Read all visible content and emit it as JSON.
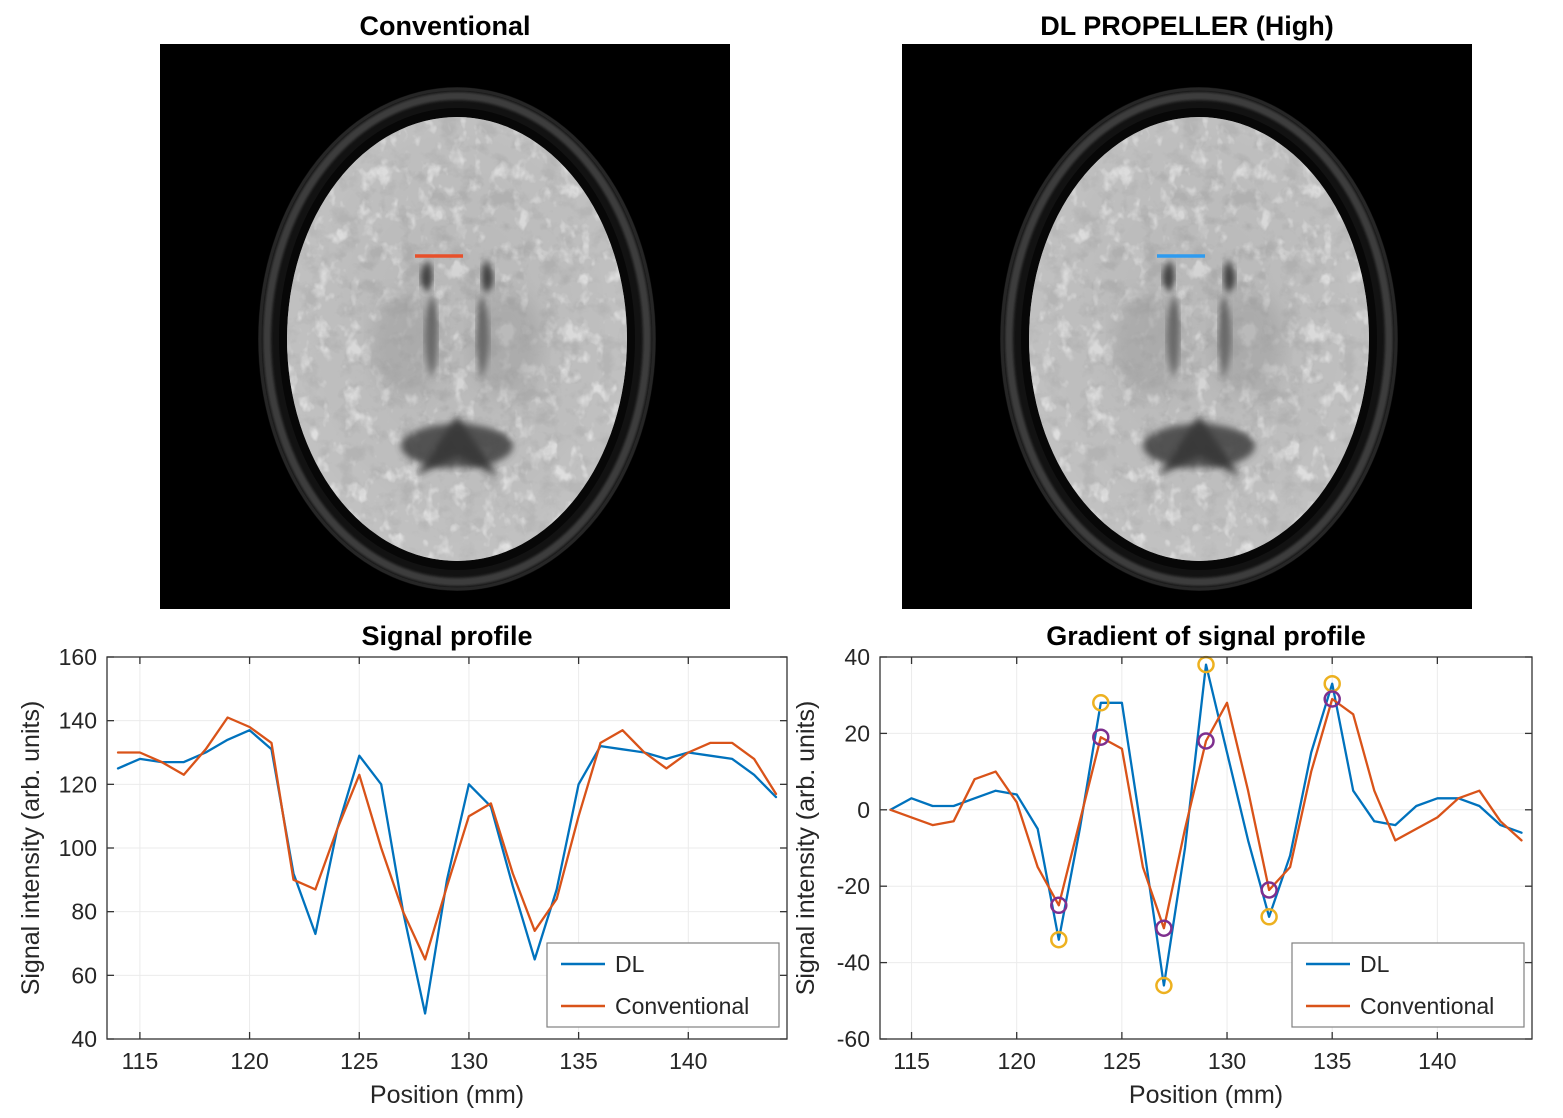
{
  "figure": {
    "background": "#ffffff"
  },
  "panels": {
    "conv": {
      "title": "Conventional",
      "marker_color": "#E8502A"
    },
    "dl": {
      "title": "DL PROPELLER (High)",
      "marker_color": "#2E9BF0"
    }
  },
  "colors": {
    "dl_line": "#0072BD",
    "conventional_line": "#D95319",
    "dl_extrema_marker": "#EDB120",
    "conventional_extrema_marker": "#7E2F8E"
  },
  "chart_data": [
    {
      "type": "line",
      "title": "Signal profile",
      "xlabel": "Position (mm)",
      "ylabel": "Signal intensity (arb. units)",
      "xlim": [
        113.5,
        144.5
      ],
      "ylim": [
        40,
        160
      ],
      "xticks": [
        115,
        120,
        125,
        130,
        135,
        140
      ],
      "yticks": [
        40,
        60,
        80,
        100,
        120,
        140,
        160
      ],
      "grid": true,
      "legend_position": "southeast",
      "x": [
        114,
        115,
        116,
        117,
        118,
        119,
        120,
        121,
        122,
        123,
        124,
        125,
        126,
        127,
        128,
        129,
        130,
        131,
        132,
        133,
        134,
        135,
        136,
        137,
        138,
        139,
        140,
        141,
        142,
        143,
        144
      ],
      "series": [
        {
          "name": "DL",
          "color": "#0072BD",
          "values": [
            125,
            128,
            127,
            127,
            130,
            134,
            137,
            131,
            92,
            73,
            106,
            129,
            120,
            80,
            48,
            90,
            120,
            113,
            88,
            65,
            87,
            120,
            132,
            131,
            130,
            128,
            130,
            129,
            128,
            123,
            116
          ]
        },
        {
          "name": "Conventional",
          "color": "#D95319",
          "values": [
            130,
            130,
            127,
            123,
            131,
            141,
            138,
            133,
            90,
            87,
            106,
            123,
            100,
            80,
            65,
            88,
            110,
            114,
            92,
            74,
            84,
            110,
            133,
            137,
            130,
            125,
            130,
            133,
            133,
            128,
            117
          ]
        }
      ]
    },
    {
      "type": "line",
      "title": "Gradient of signal profile",
      "xlabel": "Position (mm)",
      "ylabel": "Signal intensity (arb. units)",
      "xlim": [
        113.5,
        144.5
      ],
      "ylim": [
        -60,
        40
      ],
      "xticks": [
        115,
        120,
        125,
        130,
        135,
        140
      ],
      "yticks": [
        -60,
        -40,
        -20,
        0,
        20,
        40
      ],
      "grid": true,
      "legend_position": "southeast",
      "x": [
        114,
        115,
        116,
        117,
        118,
        119,
        120,
        121,
        122,
        123,
        124,
        125,
        126,
        127,
        128,
        129,
        130,
        131,
        132,
        133,
        134,
        135,
        136,
        137,
        138,
        139,
        140,
        141,
        142,
        143,
        144
      ],
      "series": [
        {
          "name": "DL",
          "color": "#0072BD",
          "values": [
            0,
            3,
            1,
            1,
            3,
            5,
            4,
            -5,
            -34,
            -5,
            28,
            28,
            -8,
            -46,
            -10,
            38,
            15,
            -8,
            -28,
            -12,
            15,
            33,
            5,
            -3,
            -4,
            1,
            3,
            3,
            1,
            -4,
            -6
          ]
        },
        {
          "name": "Conventional",
          "color": "#D95319",
          "values": [
            0,
            -2,
            -4,
            -3,
            8,
            10,
            2,
            -15,
            -25,
            -3,
            19,
            16,
            -15,
            -31,
            -5,
            18,
            28,
            5,
            -21,
            -15,
            10,
            29,
            25,
            5,
            -8,
            -5,
            -2,
            3,
            5,
            -3,
            -8
          ]
        }
      ],
      "markers": [
        {
          "name": "DL extrema",
          "color": "#EDB120",
          "points": [
            [
              122,
              -34
            ],
            [
              124,
              28
            ],
            [
              127,
              -46
            ],
            [
              129,
              38
            ],
            [
              132,
              -28
            ],
            [
              135,
              33
            ]
          ]
        },
        {
          "name": "Conventional extrema",
          "color": "#7E2F8E",
          "points": [
            [
              122,
              -25
            ],
            [
              124,
              19
            ],
            [
              127,
              -31
            ],
            [
              129,
              18
            ],
            [
              132,
              -21
            ],
            [
              135,
              29
            ]
          ]
        }
      ]
    }
  ]
}
